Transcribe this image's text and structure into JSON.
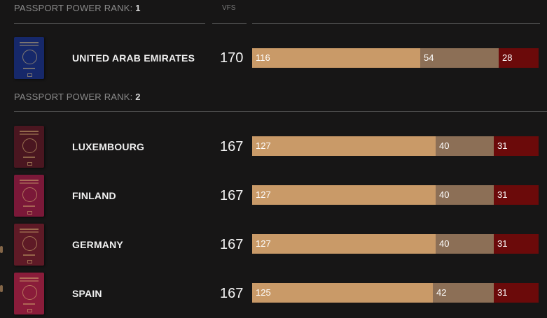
{
  "header": {
    "rank_prefix": "PASSPORT POWER RANK:",
    "vfs_label": "VFS"
  },
  "colors": {
    "visa_free": "#c99a68",
    "visa_on_arrival": "#8c6f56",
    "visa_required": "#6b0a0a",
    "background": "#171616"
  },
  "groups": [
    {
      "rank": "1",
      "countries": [
        {
          "name": "UNITED ARAB EMIRATES",
          "score": "170",
          "passport_color": "#16286a",
          "values": [
            "116",
            "54",
            "28"
          ]
        }
      ]
    },
    {
      "rank": "2",
      "countries": [
        {
          "name": "LUXEMBOURG",
          "score": "167",
          "passport_color": "#4a1620",
          "values": [
            "127",
            "40",
            "31"
          ]
        },
        {
          "name": "FINLAND",
          "score": "167",
          "passport_color": "#7a1838",
          "values": [
            "127",
            "40",
            "31"
          ]
        },
        {
          "name": "GERMANY",
          "score": "167",
          "passport_color": "#5e1a26",
          "values": [
            "127",
            "40",
            "31"
          ]
        },
        {
          "name": "SPAIN",
          "score": "167",
          "passport_color": "#8a1c3a",
          "values": [
            "125",
            "42",
            "31"
          ]
        }
      ]
    }
  ]
}
